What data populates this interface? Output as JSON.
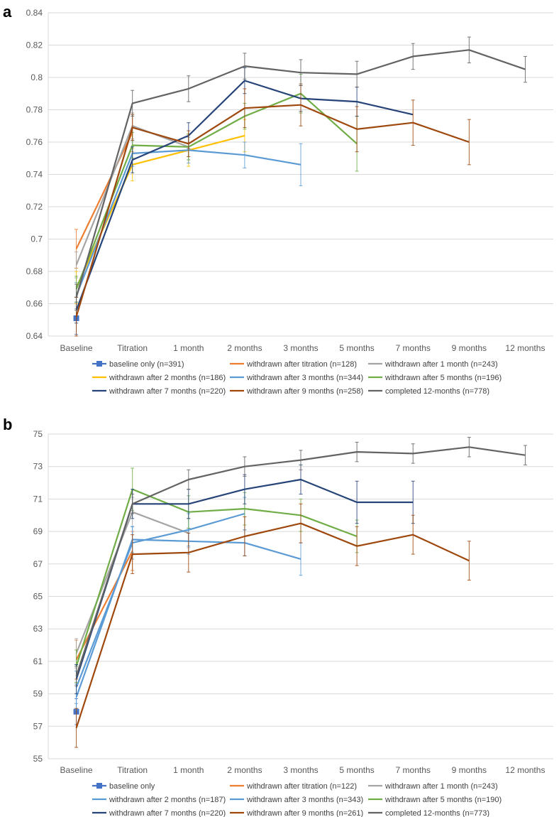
{
  "chart_data": [
    {
      "panel": "a",
      "type": "line",
      "categories": [
        "Baseline",
        "Titration",
        "1 month",
        "2 months",
        "3 months",
        "5 months",
        "7 months",
        "9 months",
        "12 months"
      ],
      "ylim": [
        0.64,
        0.84
      ],
      "yticks": [
        "0.64",
        "0.66",
        "0.68",
        "0.7",
        "0.72",
        "0.74",
        "0.76",
        "0.78",
        "0.8",
        "0.82",
        "0.84"
      ],
      "ytick_values": [
        0.64,
        0.66,
        0.68,
        0.7,
        0.72,
        0.74,
        0.76,
        0.78,
        0.8,
        0.82,
        0.84
      ],
      "grid": true,
      "legend_position": "bottom",
      "series": [
        {
          "name": "baseline only (n=391)",
          "color": "#4472C4",
          "marker": "square",
          "values": [
            0.651,
            null,
            null,
            null,
            null,
            null,
            null,
            null,
            null
          ],
          "errors": [
            0.01,
            null,
            null,
            null,
            null,
            null,
            null,
            null,
            null
          ]
        },
        {
          "name": "withdrawn after titration (n=128)",
          "color": "#ED7D31",
          "values": [
            0.694,
            0.766,
            null,
            null,
            null,
            null,
            null,
            null,
            null
          ],
          "errors": [
            0.012,
            0.012,
            null,
            null,
            null,
            null,
            null,
            null,
            null
          ]
        },
        {
          "name": "withdrawn after 1 month (n=243)",
          "color": "#A5A5A5",
          "values": [
            0.684,
            0.77,
            0.757,
            null,
            null,
            null,
            null,
            null,
            null
          ],
          "errors": [
            0.008,
            0.008,
            0.008,
            null,
            null,
            null,
            null,
            null,
            null
          ]
        },
        {
          "name": "withdrawn after 2 months (n=186)",
          "color": "#FFC000",
          "values": [
            0.67,
            0.746,
            0.755,
            0.764,
            null,
            null,
            null,
            null,
            null
          ],
          "errors": [
            0.01,
            0.01,
            0.01,
            0.01,
            null,
            null,
            null,
            null,
            null
          ]
        },
        {
          "name": "withdrawn after 3 months (n=344)",
          "color": "#5B9BD5",
          "values": [
            0.665,
            0.753,
            0.755,
            0.752,
            0.746,
            null,
            null,
            null,
            null
          ],
          "errors": [
            0.008,
            0.008,
            0.008,
            0.008,
            0.013,
            null,
            null,
            null,
            null
          ]
        },
        {
          "name": "withdrawn after 5 months (n=196)",
          "color": "#70AD47",
          "values": [
            0.669,
            0.758,
            0.757,
            0.776,
            0.79,
            0.759,
            null,
            null,
            null
          ],
          "errors": [
            0.008,
            0.008,
            0.008,
            0.008,
            0.012,
            0.017,
            null,
            null,
            null
          ]
        },
        {
          "name": "withdrawn after 7 months (n=220)",
          "color": "#264478",
          "values": [
            0.656,
            0.749,
            0.764,
            0.798,
            0.787,
            0.785,
            0.777,
            null,
            null
          ],
          "errors": [
            0.008,
            0.008,
            0.008,
            0.008,
            0.008,
            0.009,
            null,
            null,
            null
          ]
        },
        {
          "name": "withdrawn after 9 months (n=258)",
          "color": "#9E480E",
          "values": [
            0.652,
            0.769,
            0.759,
            0.781,
            0.783,
            0.768,
            0.772,
            0.76,
            null
          ],
          "errors": [
            0.012,
            0.008,
            0.008,
            0.012,
            0.013,
            0.014,
            0.014,
            0.014,
            null
          ]
        },
        {
          "name": "completed 12-months (n=778)",
          "color": "#636363",
          "values": [
            0.664,
            0.784,
            0.793,
            0.807,
            0.803,
            0.802,
            0.813,
            0.817,
            0.805
          ],
          "errors": [
            0.008,
            0.008,
            0.008,
            0.008,
            0.008,
            0.008,
            0.008,
            0.008,
            0.008
          ]
        }
      ]
    },
    {
      "panel": "b",
      "type": "line",
      "categories": [
        "Baseline",
        "Titration",
        "1 month",
        "2 months",
        "3 months",
        "5 months",
        "7 months",
        "9 months",
        "12 months"
      ],
      "ylim": [
        55,
        75
      ],
      "yticks": [
        "55",
        "57",
        "59",
        "61",
        "63",
        "65",
        "67",
        "69",
        "71",
        "73",
        "75"
      ],
      "ytick_values": [
        55,
        57,
        59,
        61,
        63,
        65,
        67,
        69,
        71,
        73,
        75
      ],
      "grid": true,
      "legend_position": "bottom",
      "series": [
        {
          "name": "baseline only",
          "color": "#4472C4",
          "marker": "square",
          "values": [
            57.9,
            null,
            null,
            null,
            null,
            null,
            null,
            null,
            null
          ],
          "errors": [
            0.8,
            null,
            null,
            null,
            null,
            null,
            null,
            null,
            null
          ]
        },
        {
          "name": "withdrawn after titration (n=122)",
          "color": "#ED7D31",
          "values": [
            61.1,
            67.8,
            null,
            null,
            null,
            null,
            null,
            null,
            null
          ],
          "errors": [
            1.2,
            1.2,
            null,
            null,
            null,
            null,
            null,
            null,
            null
          ]
        },
        {
          "name": "withdrawn after 1 month (n=243)",
          "color": "#A5A5A5",
          "values": [
            61.5,
            70.2,
            68.9,
            null,
            null,
            null,
            null,
            null,
            null
          ],
          "errors": [
            0.9,
            0.9,
            0.9,
            null,
            null,
            null,
            null,
            null,
            null
          ]
        },
        {
          "name": "withdrawn after 2 months (n=187)",
          "color": "#5B9BD5",
          "values": [
            59.4,
            68.3,
            69.1,
            70.1,
            null,
            null,
            null,
            null,
            null
          ],
          "errors": [
            1.0,
            1.0,
            1.0,
            1.0,
            null,
            null,
            null,
            null,
            null
          ]
        },
        {
          "name": "withdrawn after 3 months (n=343)",
          "color": "#5B9BD5",
          "values": [
            58.8,
            68.5,
            68.4,
            68.3,
            67.3,
            null,
            null,
            null,
            null
          ],
          "errors": [
            0.8,
            0.8,
            0.8,
            0.8,
            1.0,
            null,
            null,
            null,
            null
          ]
        },
        {
          "name": "withdrawn after 5 months (n=190)",
          "color": "#70AD47",
          "values": [
            60.7,
            71.6,
            70.2,
            70.4,
            70.0,
            68.7,
            null,
            null,
            null
          ],
          "errors": [
            1.0,
            1.3,
            1.0,
            1.0,
            1.0,
            1.0,
            null,
            null,
            null
          ]
        },
        {
          "name": "withdrawn after 7 months (n=220)",
          "color": "#264478",
          "values": [
            59.9,
            70.7,
            70.7,
            71.6,
            72.2,
            70.8,
            70.8,
            null,
            null
          ],
          "errors": [
            0.9,
            0.9,
            0.9,
            0.9,
            0.9,
            1.3,
            1.3,
            null,
            null
          ]
        },
        {
          "name": "withdrawn after 9 months (n=261)",
          "color": "#9E480E",
          "values": [
            56.9,
            67.6,
            67.7,
            68.7,
            69.5,
            68.1,
            68.8,
            67.2,
            null
          ],
          "errors": [
            1.2,
            1.2,
            1.2,
            1.2,
            1.2,
            1.2,
            1.2,
            1.2,
            null
          ]
        },
        {
          "name": "completed 12-months (n=773)",
          "color": "#636363",
          "values": [
            60.1,
            70.7,
            72.2,
            73.0,
            73.4,
            73.9,
            73.8,
            74.2,
            73.7
          ],
          "errors": [
            0.6,
            0.6,
            0.6,
            0.6,
            0.6,
            0.6,
            0.6,
            0.6,
            0.6
          ]
        }
      ]
    }
  ]
}
